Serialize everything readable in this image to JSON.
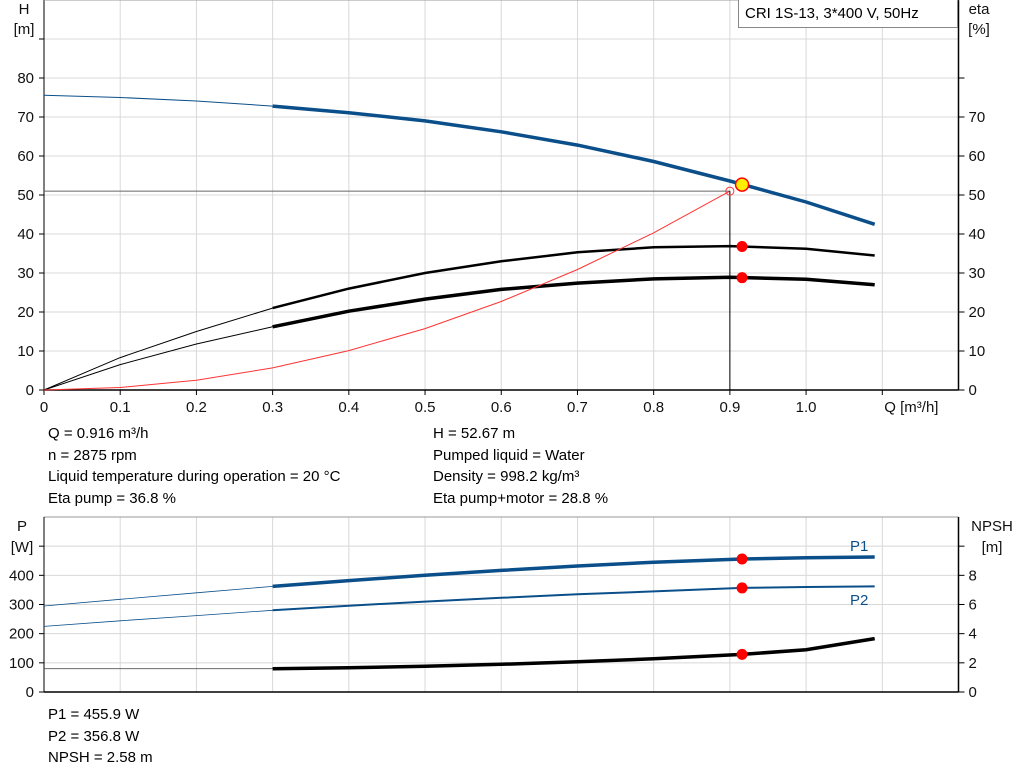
{
  "chart_data": [
    {
      "type": "line",
      "title": "",
      "legend_text": "CRI 1S-13, 3*400 V, 50Hz",
      "legend_placement": "top-right",
      "xlabel": "Q [m³/h]",
      "ylabel_left": [
        "H",
        "[m]"
      ],
      "ylabel_right": [
        "eta",
        "[%]"
      ],
      "xlim": [
        0,
        1.2
      ],
      "ylim": [
        0,
        100
      ],
      "grid": true,
      "x_ticks": [
        "0",
        "0.1",
        "0.2",
        "0.3",
        "0.4",
        "0.5",
        "0.6",
        "0.7",
        "0.8",
        "0.9",
        "1.0"
      ],
      "y_ticks_left": [
        "0",
        "10",
        "20",
        "30",
        "40",
        "50",
        "60",
        "70",
        "80"
      ],
      "y_ticks_right": [
        "0",
        "10",
        "20",
        "30",
        "40",
        "50",
        "60",
        "70"
      ],
      "series": [
        {
          "id": "H",
          "color": "#0b4f8a",
          "x": [
            0,
            0.1,
            0.2,
            0.3,
            0.4,
            0.5,
            0.6,
            0.7,
            0.8,
            0.9,
            1.0,
            1.09
          ],
          "y": [
            75.6,
            75.0,
            74.1,
            72.8,
            71.1,
            69.0,
            66.2,
            62.8,
            58.6,
            53.6,
            48.2,
            42.5
          ]
        },
        {
          "id": "eta_pump",
          "color": "#000000",
          "x": [
            0,
            0.1,
            0.2,
            0.3,
            0.4,
            0.5,
            0.6,
            0.7,
            0.8,
            0.9,
            1.0,
            1.09
          ],
          "y": [
            0,
            8.3,
            15.0,
            21.0,
            26.0,
            30.0,
            33.0,
            35.3,
            36.6,
            36.9,
            36.2,
            34.5
          ]
        },
        {
          "id": "eta_pump_motor",
          "color": "#000000",
          "x": [
            0,
            0.1,
            0.2,
            0.3,
            0.4,
            0.5,
            0.6,
            0.7,
            0.8,
            0.9,
            1.0,
            1.09
          ],
          "y": [
            0,
            6.5,
            11.8,
            16.2,
            20.2,
            23.3,
            25.8,
            27.4,
            28.5,
            28.9,
            28.4,
            27.0
          ]
        },
        {
          "id": "system_curve",
          "color": "#ff3333",
          "x": [
            0,
            0.1,
            0.2,
            0.3,
            0.4,
            0.5,
            0.6,
            0.7,
            0.8,
            0.9
          ],
          "y": [
            0,
            0.63,
            2.52,
            5.67,
            10.1,
            15.75,
            22.7,
            30.9,
            40.3,
            51.0
          ]
        }
      ],
      "duty_point": {
        "x": 0.9,
        "y": 51
      },
      "operating_point": {
        "x": 0.916,
        "H": 52.67,
        "eta_pump": 36.8,
        "eta_pump_motor": 28.8
      },
      "colors": {
        "operating_point_fill": "#ffee00",
        "marker": "#ff0000"
      }
    },
    {
      "type": "line",
      "title": "",
      "ylabel_left": [
        "P",
        "[W]"
      ],
      "ylabel_right": [
        "NPSH",
        "[m]"
      ],
      "xlim": [
        0,
        1.2
      ],
      "ylim": [
        0,
        600
      ],
      "ylim_right": [
        0,
        12
      ],
      "grid": true,
      "y_ticks_left": [
        "0",
        "100",
        "200",
        "300",
        "400"
      ],
      "y_ticks_right": [
        "0",
        "2",
        "4",
        "6",
        "8"
      ],
      "series": [
        {
          "name": "P1",
          "color": "#0b4f8a",
          "x": [
            0,
            0.1,
            0.2,
            0.3,
            0.4,
            0.5,
            0.6,
            0.7,
            0.8,
            0.916,
            1.0,
            1.09
          ],
          "y": [
            295,
            318,
            340,
            362,
            382,
            400,
            417,
            432,
            445,
            456,
            460,
            463
          ]
        },
        {
          "name": "P2",
          "color": "#0b4f8a",
          "x": [
            0,
            0.1,
            0.2,
            0.3,
            0.4,
            0.5,
            0.6,
            0.7,
            0.8,
            0.916,
            1.0,
            1.09
          ],
          "y": [
            225,
            244,
            262,
            280,
            296,
            310,
            323,
            335,
            345,
            357,
            360,
            362
          ]
        },
        {
          "id": "NPSH",
          "color": "#000000",
          "unit_axis": "right",
          "x": [
            0,
            0.1,
            0.2,
            0.3,
            0.4,
            0.5,
            0.6,
            0.7,
            0.8,
            0.916,
            1.0,
            1.09
          ],
          "y": [
            1.6,
            1.6,
            1.6,
            1.6,
            1.66,
            1.76,
            1.9,
            2.08,
            2.28,
            2.58,
            2.9,
            3.66
          ]
        }
      ],
      "operating_point": {
        "x": 0.916,
        "P1": 455.9,
        "P2": 356.8,
        "NPSH": 2.58
      }
    }
  ],
  "info_top_left": [
    "Q = 0.916 m³/h",
    "n = 2875 rpm",
    "Liquid temperature during operation = 20 °C",
    "Eta pump = 36.8 %"
  ],
  "info_top_right": [
    "H = 52.67 m",
    "Pumped liquid = Water",
    "Density = 998.2 kg/m³",
    "Eta pump+motor = 28.8 %"
  ],
  "info_bottom": [
    "P1 = 455.9 W",
    "P2 = 356.8 W",
    "NPSH = 2.58 m"
  ]
}
